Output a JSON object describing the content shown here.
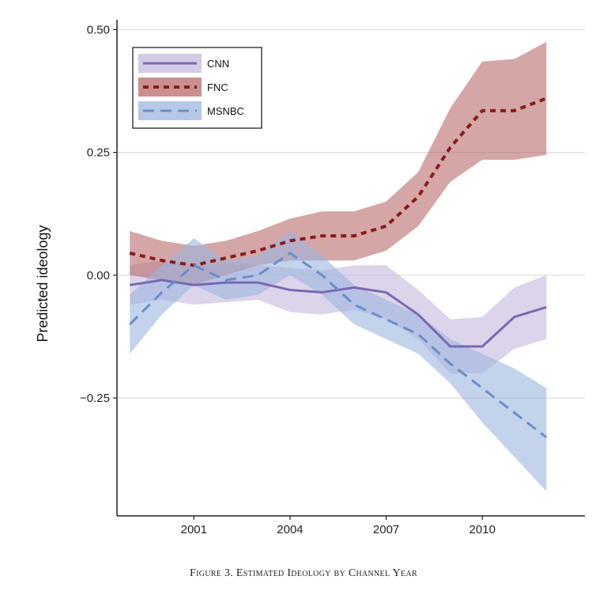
{
  "caption": "Figure 3. Estimated Ideology by Channel Year",
  "chart_data": {
    "type": "line",
    "title": "",
    "xlabel": "",
    "ylabel": "Predicted ideology",
    "xlim": [
      1998.6,
      2013.2
    ],
    "ylim": [
      -0.49,
      0.52
    ],
    "xticks": [
      2001,
      2004,
      2007,
      2010
    ],
    "yticks": [
      -0.25,
      0.0,
      0.25,
      0.5
    ],
    "ytick_labels": [
      "−0.25",
      "0.00",
      "0.25",
      "0.50"
    ],
    "grid": "horizontal",
    "legend_position": "top-left",
    "x": [
      1999,
      2000,
      2001,
      2002,
      2003,
      2004,
      2005,
      2006,
      2007,
      2008,
      2009,
      2010,
      2011,
      2012
    ],
    "series": [
      {
        "name": "CNN",
        "style": "solid",
        "line_color": "#7b68b0",
        "band_color": "#c4b8dc",
        "values": [
          -0.02,
          -0.01,
          -0.02,
          -0.015,
          -0.015,
          -0.03,
          -0.035,
          -0.025,
          -0.035,
          -0.08,
          -0.145,
          -0.145,
          -0.085,
          -0.065
        ],
        "lower": [
          -0.06,
          -0.05,
          -0.06,
          -0.055,
          -0.05,
          -0.075,
          -0.08,
          -0.07,
          -0.09,
          -0.13,
          -0.2,
          -0.2,
          -0.15,
          -0.13
        ],
        "upper": [
          0.02,
          0.03,
          0.02,
          0.025,
          0.02,
          0.015,
          0.01,
          0.02,
          0.02,
          -0.03,
          -0.09,
          -0.085,
          -0.025,
          0.0
        ]
      },
      {
        "name": "FNC",
        "style": "dotted",
        "line_color": "#8b1a1a",
        "band_color": "#b86b6b",
        "values": [
          0.045,
          0.03,
          0.02,
          0.035,
          0.05,
          0.07,
          0.08,
          0.08,
          0.1,
          0.16,
          0.26,
          0.335,
          0.335,
          0.36
        ],
        "lower": [
          0.0,
          -0.01,
          -0.02,
          0.0,
          0.02,
          0.03,
          0.03,
          0.03,
          0.05,
          0.1,
          0.19,
          0.235,
          0.235,
          0.245
        ],
        "upper": [
          0.09,
          0.07,
          0.06,
          0.07,
          0.09,
          0.115,
          0.13,
          0.13,
          0.15,
          0.21,
          0.34,
          0.435,
          0.44,
          0.475
        ]
      },
      {
        "name": "MSNBC",
        "style": "dashed",
        "line_color": "#6a8ec8",
        "band_color": "#9cb6e0",
        "values": [
          -0.1,
          -0.035,
          0.02,
          -0.01,
          0.0,
          0.045,
          0.0,
          -0.06,
          -0.09,
          -0.12,
          -0.18,
          -0.23,
          -0.28,
          -0.33
        ],
        "lower": [
          -0.16,
          -0.08,
          -0.02,
          -0.05,
          -0.04,
          0.0,
          -0.04,
          -0.1,
          -0.13,
          -0.16,
          -0.22,
          -0.3,
          -0.37,
          -0.44
        ],
        "upper": [
          -0.04,
          0.02,
          0.075,
          0.03,
          0.04,
          0.09,
          0.04,
          -0.02,
          -0.05,
          -0.08,
          -0.13,
          -0.16,
          -0.19,
          -0.23
        ]
      }
    ]
  }
}
